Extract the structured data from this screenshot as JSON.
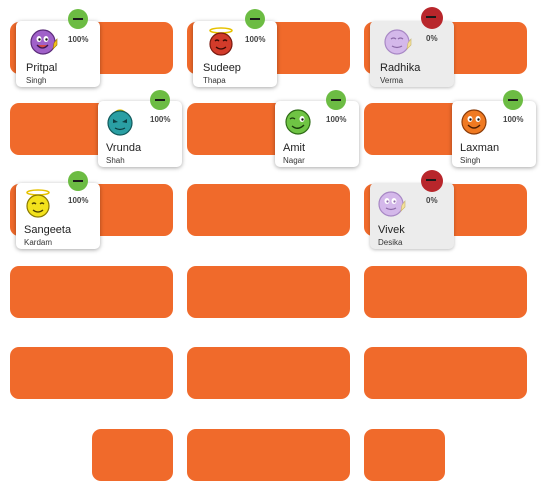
{
  "colors": {
    "slot": "#f06a2b",
    "present": "#6cbc43",
    "absent": "#b8262b"
  },
  "students": [
    {
      "first": "Pritpal",
      "last": "Singh",
      "percent": "100%",
      "status": "present",
      "face": "purple-thumbs"
    },
    {
      "first": "Sudeep",
      "last": "Thapa",
      "percent": "100%",
      "status": "present",
      "face": "red-halo"
    },
    {
      "first": "Radhika",
      "last": "Verma",
      "percent": "0%",
      "status": "absent",
      "face": "lavender-thumbs"
    },
    {
      "first": "Vrunda",
      "last": "Shah",
      "percent": "100%",
      "status": "present",
      "face": "teal-alien"
    },
    {
      "first": "Amit",
      "last": "Nagar",
      "percent": "100%",
      "status": "present",
      "face": "green-wink"
    },
    {
      "first": "Laxman",
      "last": "Singh",
      "percent": "100%",
      "status": "present",
      "face": "orange"
    },
    {
      "first": "Sangeeta",
      "last": "Kardam",
      "percent": "100%",
      "status": "present",
      "face": "yellow-halo"
    },
    {
      "first": "Vivek",
      "last": "Desika",
      "percent": "0%",
      "status": "absent",
      "face": "lavender-thumbs"
    }
  ]
}
